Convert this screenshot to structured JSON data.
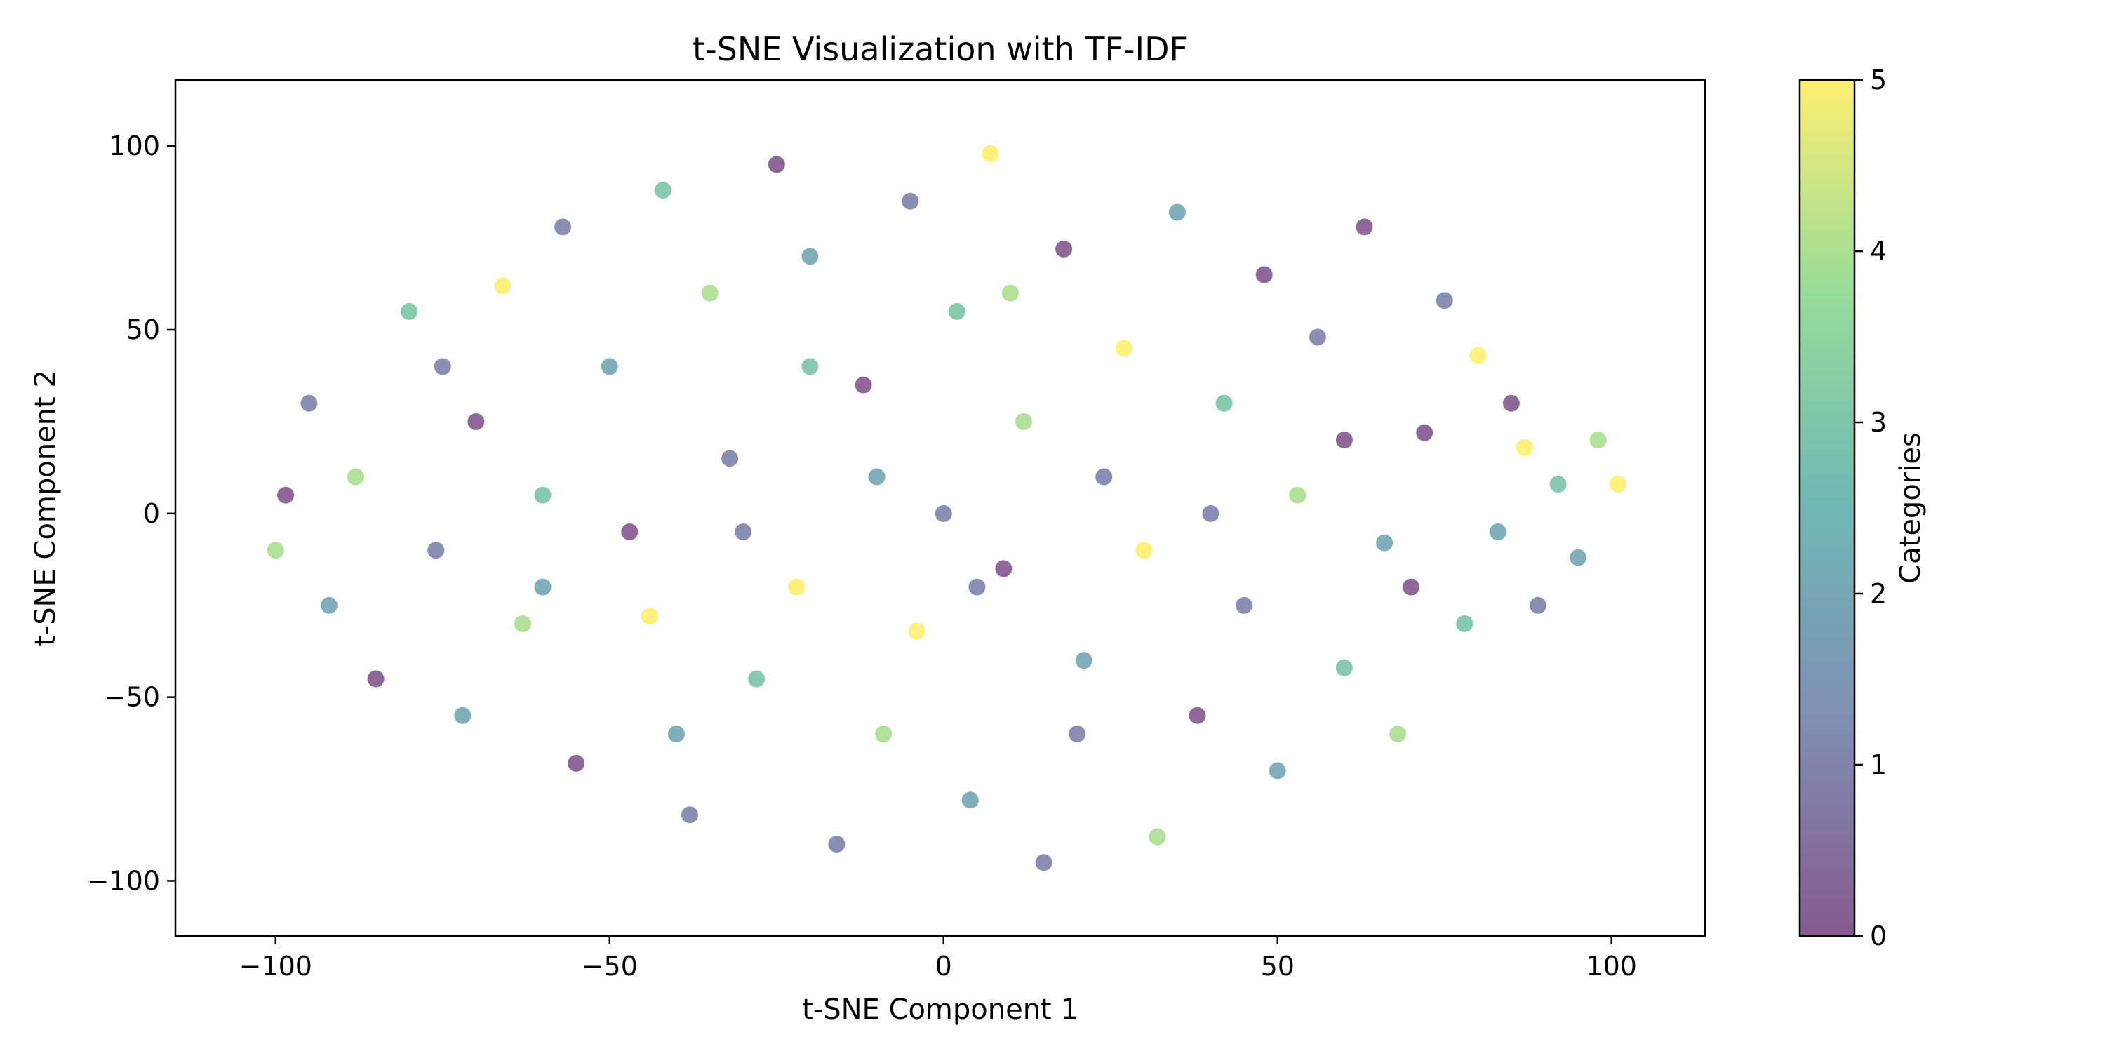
{
  "chart_data": {
    "type": "scatter",
    "title": "t-SNE Visualization with TF-IDF",
    "xlabel": "t-SNE Component 1",
    "ylabel": "t-SNE Component 2",
    "xlim": [
      -115,
      114
    ],
    "ylim": [
      -115,
      118
    ],
    "x_ticks": [
      -100,
      -50,
      0,
      50,
      100
    ],
    "y_ticks": [
      -100,
      -50,
      0,
      50,
      100
    ],
    "x_tick_labels": [
      "−100",
      "−50",
      "0",
      "50",
      "100"
    ],
    "y_tick_labels": [
      "−100",
      "−50",
      "0",
      "50",
      "100"
    ],
    "grid": false,
    "legend": "none",
    "colorbar": {
      "label": "Categories",
      "range": [
        0,
        5
      ],
      "ticks": [
        0,
        1,
        2,
        3,
        4,
        5
      ],
      "tick_labels": [
        "0",
        "1",
        "2",
        "3",
        "4",
        "5"
      ],
      "colormap": "viridis",
      "colors": [
        "#440154",
        "#3b528b",
        "#21918c",
        "#5ec962",
        "#fde725"
      ]
    },
    "point_alpha": 0.6,
    "points": [
      [
        -98.5,
        5,
        0
      ],
      [
        -95,
        30,
        1
      ],
      [
        -92,
        -25,
        2
      ],
      [
        -88,
        10,
        4
      ],
      [
        -85,
        -45,
        0
      ],
      [
        -80,
        55,
        3
      ],
      [
        -76,
        -10,
        1
      ],
      [
        -72,
        -55,
        2
      ],
      [
        -70,
        25,
        0
      ],
      [
        -66,
        62,
        5
      ],
      [
        -63,
        -30,
        4
      ],
      [
        -60,
        5,
        3
      ],
      [
        -57,
        78,
        1
      ],
      [
        -55,
        -68,
        0
      ],
      [
        -50,
        40,
        2
      ],
      [
        -47,
        -5,
        0
      ],
      [
        -44,
        -28,
        5
      ],
      [
        -42,
        88,
        3
      ],
      [
        -38,
        -82,
        1
      ],
      [
        -35,
        60,
        4
      ],
      [
        -32,
        15,
        1
      ],
      [
        -28,
        -45,
        3
      ],
      [
        -25,
        95,
        0
      ],
      [
        -22,
        -20,
        5
      ],
      [
        -20,
        70,
        2
      ],
      [
        -16,
        -90,
        1
      ],
      [
        -12,
        35,
        0
      ],
      [
        -9,
        -60,
        4
      ],
      [
        -5,
        85,
        1
      ],
      [
        -4,
        -32,
        5
      ],
      [
        0,
        0,
        1
      ],
      [
        2,
        55,
        3
      ],
      [
        4,
        -78,
        2
      ],
      [
        7,
        98,
        5
      ],
      [
        9,
        -15,
        0
      ],
      [
        12,
        25,
        4
      ],
      [
        15,
        -95,
        1
      ],
      [
        18,
        72,
        0
      ],
      [
        21,
        -40,
        2
      ],
      [
        24,
        10,
        1
      ],
      [
        27,
        45,
        5
      ],
      [
        30,
        -10,
        5
      ],
      [
        32,
        -88,
        4
      ],
      [
        35,
        82,
        2
      ],
      [
        38,
        -55,
        0
      ],
      [
        42,
        30,
        3
      ],
      [
        45,
        -25,
        1
      ],
      [
        48,
        65,
        0
      ],
      [
        50,
        -70,
        2
      ],
      [
        53,
        5,
        4
      ],
      [
        56,
        48,
        1
      ],
      [
        60,
        -42,
        3
      ],
      [
        63,
        78,
        0
      ],
      [
        66,
        -8,
        2
      ],
      [
        68,
        -60,
        4
      ],
      [
        72,
        22,
        0
      ],
      [
        75,
        58,
        1
      ],
      [
        78,
        -30,
        3
      ],
      [
        80,
        43,
        5
      ],
      [
        83,
        -5,
        2
      ],
      [
        85,
        30,
        0
      ],
      [
        87,
        18,
        5
      ],
      [
        89,
        -25,
        1
      ],
      [
        92,
        8,
        3
      ],
      [
        95,
        -12,
        2
      ],
      [
        98,
        20,
        4
      ],
      [
        101,
        8,
        5
      ],
      [
        -100,
        -10,
        4
      ],
      [
        -30,
        -5,
        1
      ],
      [
        -10,
        10,
        2
      ],
      [
        5,
        -20,
        1
      ],
      [
        20,
        -60,
        1
      ],
      [
        -40,
        -60,
        2
      ],
      [
        40,
        0,
        1
      ],
      [
        60,
        20,
        0
      ],
      [
        -60,
        -20,
        2
      ],
      [
        -20,
        40,
        3
      ],
      [
        10,
        60,
        4
      ],
      [
        -75,
        40,
        1
      ],
      [
        70,
        -20,
        0
      ]
    ]
  }
}
